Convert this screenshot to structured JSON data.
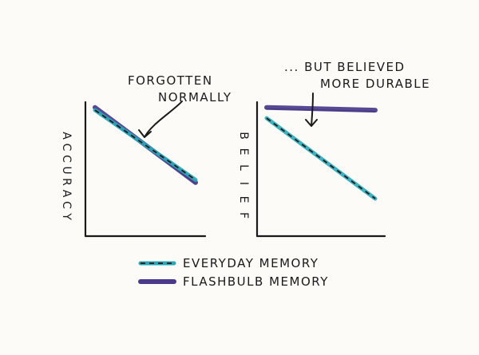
{
  "chart_data": [
    {
      "type": "line",
      "ylabel": "ACCURACY",
      "xlabel": "",
      "ylim": [
        0,
        1
      ],
      "xlim": [
        0,
        1
      ],
      "annotation": [
        "FORGOTTEN",
        "NORMALLY"
      ],
      "series": [
        {
          "name": "EVERYDAY MEMORY",
          "x": [
            0,
            1
          ],
          "y": [
            0.94,
            0.42
          ],
          "style": "dashed"
        },
        {
          "name": "FLASHBULB MEMORY",
          "x": [
            0,
            1
          ],
          "y": [
            0.96,
            0.4
          ],
          "style": "solid"
        }
      ]
    },
    {
      "type": "line",
      "ylabel": "BELIEF",
      "xlabel": "",
      "ylim": [
        0,
        1
      ],
      "xlim": [
        0,
        1
      ],
      "annotation": [
        "... BUT BELIEVED",
        "MORE DURABLE"
      ],
      "series": [
        {
          "name": "EVERYDAY MEMORY",
          "x": [
            0,
            1
          ],
          "y": [
            0.88,
            0.28
          ],
          "style": "dashed"
        },
        {
          "name": "FLASHBULB MEMORY",
          "x": [
            0,
            1
          ],
          "y": [
            0.96,
            0.94
          ],
          "style": "solid"
        }
      ]
    }
  ],
  "legend": [
    {
      "label": "EVERYDAY MEMORY",
      "style": "dashed"
    },
    {
      "label": "FLASHBULB MEMORY",
      "style": "solid"
    }
  ],
  "colors": {
    "everyday": "#2aa8b8",
    "flashbulb": "#4b3a8c",
    "ink": "#1a1a1a",
    "background": "#fcfbf8"
  }
}
